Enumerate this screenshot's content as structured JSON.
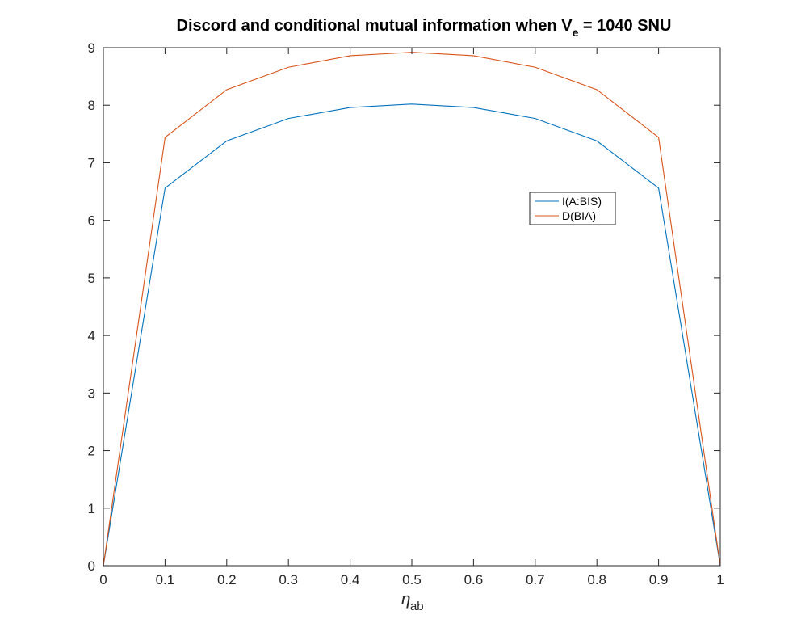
{
  "chart_data": {
    "type": "line",
    "title": {
      "prefix": "Discord and conditional mutual information when V",
      "subscript": "e",
      "suffix": " = 1040 SNU"
    },
    "xlabel": {
      "symbol": "η",
      "subscript": "ab"
    },
    "ylabel": "",
    "xlim": [
      0,
      1
    ],
    "ylim": [
      0,
      9
    ],
    "xticks": [
      0,
      0.1,
      0.2,
      0.3,
      0.4,
      0.5,
      0.6,
      0.7,
      0.8,
      0.9,
      1
    ],
    "xtick_labels": [
      "0",
      "0.1",
      "0.2",
      "0.3",
      "0.4",
      "0.5",
      "0.6",
      "0.7",
      "0.8",
      "0.9",
      "1"
    ],
    "yticks": [
      0,
      1,
      2,
      3,
      4,
      5,
      6,
      7,
      8,
      9
    ],
    "ytick_labels": [
      "0",
      "1",
      "2",
      "3",
      "4",
      "5",
      "6",
      "7",
      "8",
      "9"
    ],
    "grid": false,
    "legend_position": "right-center",
    "x": [
      0,
      0.1,
      0.2,
      0.3,
      0.4,
      0.5,
      0.6,
      0.7,
      0.8,
      0.9,
      1
    ],
    "series": [
      {
        "name": "I(A:BIS)",
        "color": "#0072BD",
        "values": [
          0,
          6.56,
          7.38,
          7.77,
          7.96,
          8.02,
          7.96,
          7.77,
          7.38,
          6.56,
          0
        ]
      },
      {
        "name": "D(BIA)",
        "color": "#D95319",
        "values": [
          0,
          7.44,
          8.27,
          8.66,
          8.86,
          8.92,
          8.86,
          8.66,
          8.27,
          7.44,
          0
        ]
      }
    ]
  }
}
